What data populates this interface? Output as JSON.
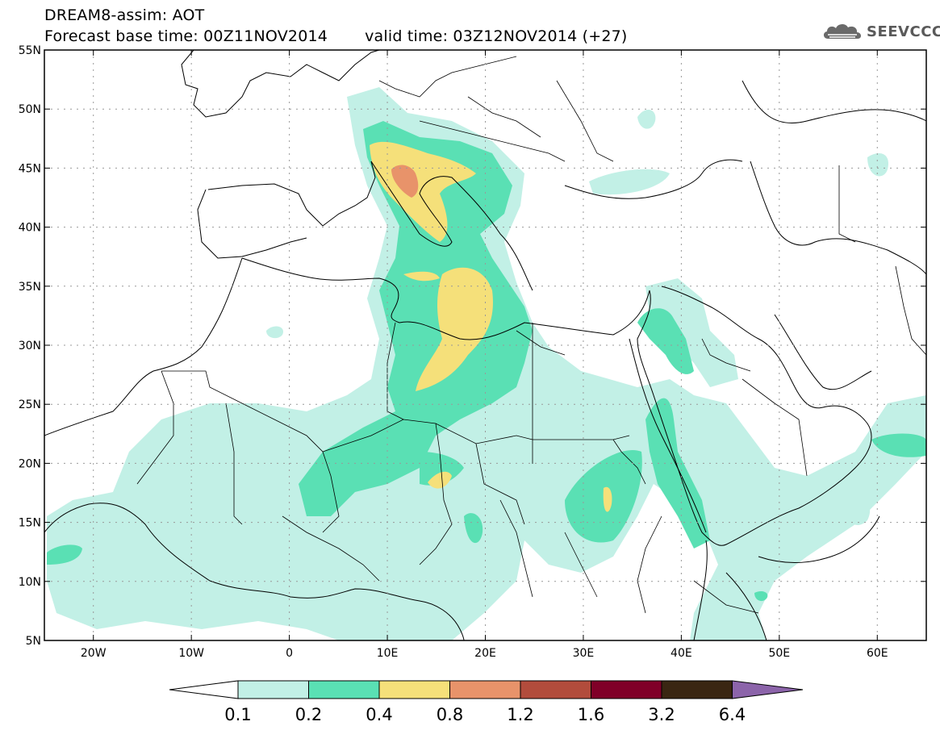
{
  "header": {
    "title": "DREAM8-assim: AOT",
    "base_time": "Forecast base time: 00Z11NOV2014",
    "valid_time": "valid time: 03Z12NOV2014 (+27)",
    "logo_text": "SEEVCCC",
    "logo_icon": "cloud-icon"
  },
  "map": {
    "lon_range": [
      -25,
      65
    ],
    "lat_range": [
      5,
      55
    ],
    "lat_labels": [
      "55N",
      "50N",
      "45N",
      "40N",
      "35N",
      "30N",
      "25N",
      "20N",
      "15N",
      "10N",
      "5N"
    ],
    "lon_labels": [
      "20W",
      "10W",
      "0",
      "10E",
      "20E",
      "30E",
      "40E",
      "50E",
      "60E"
    ],
    "grid": "dotted"
  },
  "legend": {
    "labels": [
      "0.1",
      "0.2",
      "0.4",
      "0.8",
      "1.2",
      "1.6",
      "3.2",
      "6.4"
    ],
    "colors": [
      "#ffffff",
      "#c2f0e6",
      "#5ae0b4",
      "#f5e07a",
      "#e8936a",
      "#b24c3c",
      "#800028",
      "#3a2612",
      "#8c64aa"
    ]
  }
}
